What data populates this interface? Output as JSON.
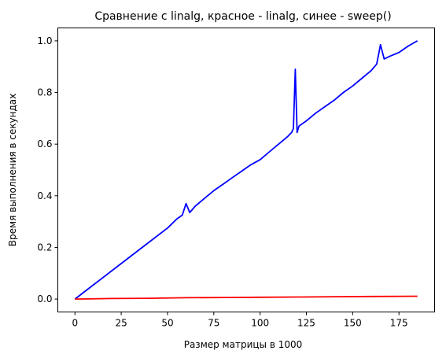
{
  "chart_data": {
    "type": "line",
    "title": "Сравнение с linalg, красное - linalg, синее - sweep()",
    "xlabel": "Размер матрицы в 1000",
    "ylabel": "Время выполнения в секундах",
    "xlim": [
      -9.25,
      194.25
    ],
    "ylim": [
      -0.05,
      1.05
    ],
    "xticks": [
      0,
      25,
      50,
      75,
      100,
      125,
      150,
      175
    ],
    "yticks": [
      0.0,
      0.2,
      0.4,
      0.6,
      0.8,
      1.0
    ],
    "xtick_labels": [
      "0",
      "25",
      "50",
      "75",
      "100",
      "125",
      "150",
      "175"
    ],
    "ytick_labels": [
      "0.0",
      "0.2",
      "0.4",
      "0.6",
      "0.8",
      "1.0"
    ],
    "grid": false,
    "series": [
      {
        "color": "#0000ff",
        "x": [
          0,
          10,
          20,
          30,
          40,
          50,
          55,
          58,
          60,
          62,
          65,
          70,
          75,
          80,
          85,
          90,
          95,
          100,
          105,
          110,
          115,
          117,
          118,
          119,
          120,
          121,
          125,
          130,
          135,
          140,
          145,
          150,
          155,
          160,
          163,
          165,
          167,
          170,
          175,
          180,
          185
        ],
        "y": [
          0.0,
          0.055,
          0.11,
          0.165,
          0.22,
          0.275,
          0.31,
          0.325,
          0.37,
          0.335,
          0.36,
          0.39,
          0.42,
          0.445,
          0.47,
          0.495,
          0.52,
          0.54,
          0.57,
          0.6,
          0.63,
          0.645,
          0.66,
          0.89,
          0.645,
          0.67,
          0.69,
          0.72,
          0.745,
          0.77,
          0.8,
          0.825,
          0.855,
          0.885,
          0.91,
          0.985,
          0.93,
          0.94,
          0.955,
          0.98,
          1.0
        ]
      },
      {
        "color": "#ff0000",
        "x": [
          0,
          20,
          40,
          60,
          80,
          100,
          120,
          140,
          160,
          185
        ],
        "y": [
          0.0,
          0.002,
          0.003,
          0.005,
          0.006,
          0.007,
          0.008,
          0.009,
          0.01,
          0.011
        ]
      }
    ]
  }
}
